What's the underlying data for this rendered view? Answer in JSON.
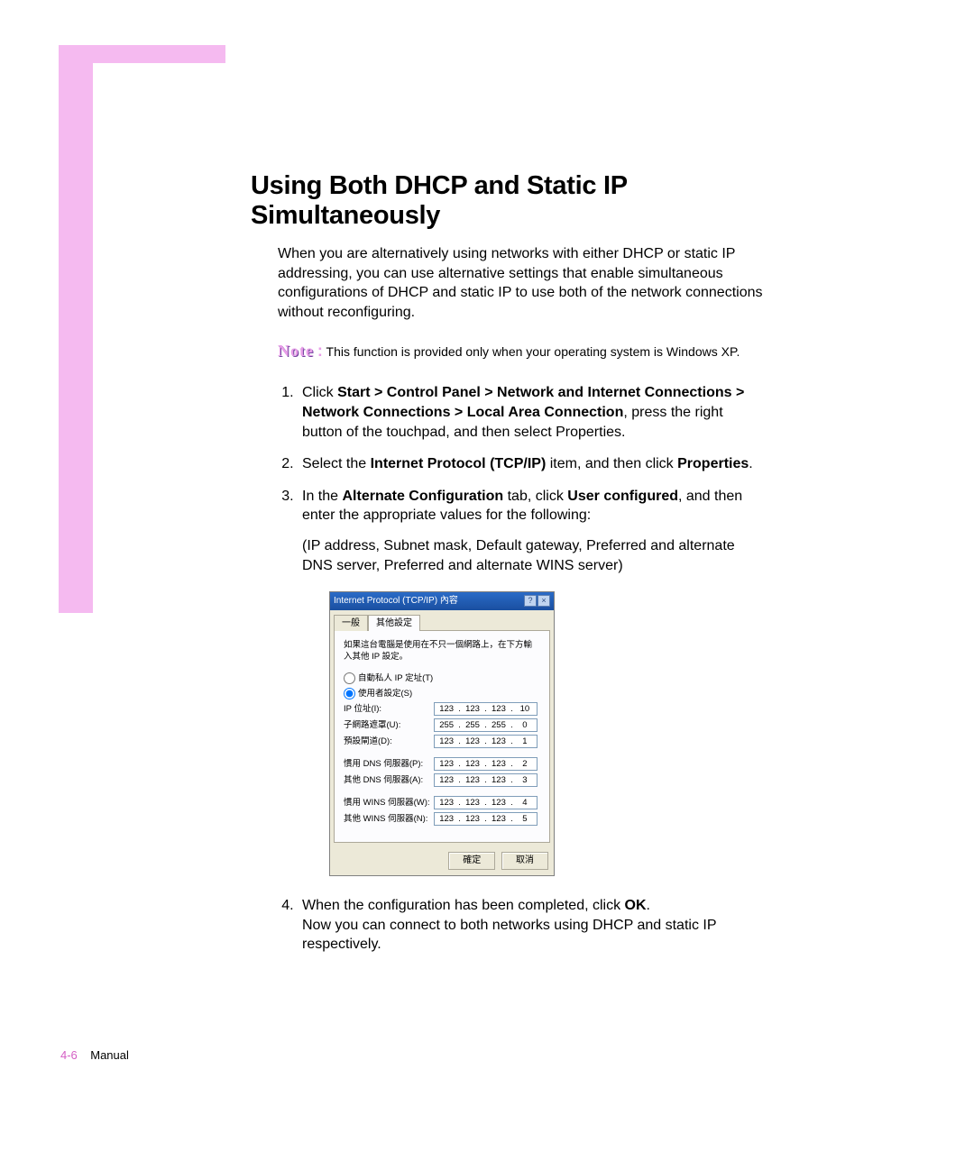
{
  "heading": "Using Both DHCP and Static IP Simultaneously",
  "intro": "When you are alternatively using networks with either DHCP or static IP addressing, you can use alternative settings that enable simultaneous configurations of DHCP and static IP to use both of the network connections without reconfiguring.",
  "noteWord": "Note",
  "noteColon": ":",
  "noteText": "This function is provided only when your operating system is Windows XP.",
  "step1a": "Click ",
  "step1b": "Start > Control Panel > Network and Internet Connections > Network Connections > Local Area Connection",
  "step1c": ", press the right button of the touchpad, and then select Properties.",
  "step2a": "Select the ",
  "step2b": "Internet Protocol (TCP/IP)",
  "step2c": " item, and then click ",
  "step2d": "Properties",
  "step2e": ".",
  "step3a": "In the ",
  "step3b": "Alternate Configuration",
  "step3c": " tab, click ",
  "step3d": "User configured",
  "step3e": ", and then enter the appropriate values for the following:",
  "step3sub": "(IP address, Subnet mask, Default gateway, Preferred and alternate DNS server, Preferred and alternate WINS server)",
  "step4a": "When the configuration has been completed, click ",
  "step4b": "OK",
  "step4c": ".",
  "step4sub": "Now you can connect to both networks using DHCP and static IP respectively.",
  "dialog": {
    "title": "Internet Protocol (TCP/IP) 內容",
    "tab1": "一般",
    "tab2": "其他設定",
    "desc": "如果這台電腦是使用在不只一個網路上，在下方輸入其他 IP 設定。",
    "radio1": "自動私人 IP 定址(T)",
    "radio2": "使用者設定(S)",
    "fields": [
      {
        "label": "IP 位址(I):",
        "ip": [
          "123",
          "123",
          "123",
          "10"
        ]
      },
      {
        "label": "子網路遮罩(U):",
        "ip": [
          "255",
          "255",
          "255",
          "0"
        ]
      },
      {
        "label": "預設閘道(D):",
        "ip": [
          "123",
          "123",
          "123",
          "1"
        ]
      }
    ],
    "fields2": [
      {
        "label": "慣用 DNS 伺服器(P):",
        "ip": [
          "123",
          "123",
          "123",
          "2"
        ]
      },
      {
        "label": "其他 DNS 伺服器(A):",
        "ip": [
          "123",
          "123",
          "123",
          "3"
        ]
      }
    ],
    "fields3": [
      {
        "label": "慣用 WINS 伺服器(W):",
        "ip": [
          "123",
          "123",
          "123",
          "4"
        ]
      },
      {
        "label": "其他 WINS 伺服器(N):",
        "ip": [
          "123",
          "123",
          "123",
          "5"
        ]
      }
    ],
    "ok": "確定",
    "cancel": "取消"
  },
  "footer": {
    "page": "4-6",
    "label": "Manual"
  }
}
